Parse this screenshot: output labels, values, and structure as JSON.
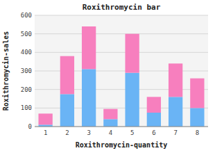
{
  "chart_data": {
    "type": "bar",
    "title": "Roxithromycin bar",
    "xlabel": "Roxithromycin-quantity",
    "ylabel": "Roxithromycin-sales",
    "categories": [
      1,
      2,
      3,
      4,
      5,
      6,
      7,
      8
    ],
    "series": [
      {
        "color": "#6ab4f5",
        "values": [
          10,
          175,
          310,
          40,
          290,
          75,
          160,
          100
        ]
      },
      {
        "color": "#f77fbe",
        "values": [
          60,
          205,
          230,
          55,
          210,
          85,
          180,
          160
        ]
      }
    ],
    "stacked": true,
    "ylim": [
      0,
      600
    ],
    "yticks": [
      0,
      100,
      200,
      300,
      400,
      500,
      600
    ],
    "grid": true
  }
}
